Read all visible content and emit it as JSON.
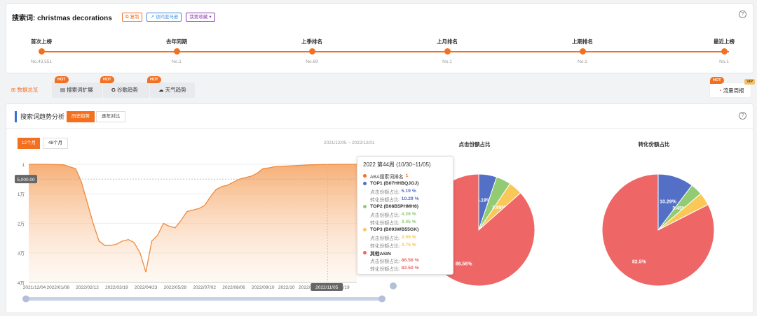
{
  "search": {
    "label": "搜索词: christmas decorations",
    "copy_label": "复制",
    "visit_label": "访问亚马逊",
    "fav_label": "我要收藏"
  },
  "timeline": [
    {
      "label": "首次上榜",
      "value": "No.43,551"
    },
    {
      "label": "去年同期",
      "value": "No.1"
    },
    {
      "label": "上季排名",
      "value": "No.69"
    },
    {
      "label": "上月排名",
      "value": "No.1"
    },
    {
      "label": "上期排名",
      "value": "No.1"
    },
    {
      "label": "最近上榜",
      "value": "No.1"
    }
  ],
  "tabs": {
    "overview": "数据总览",
    "expand": "搜索词扩展",
    "google": "谷歌趋势",
    "weather": "天气趋势",
    "traffic": "流量周报",
    "hot": "HOT",
    "vip": "VIP"
  },
  "section": {
    "title": "搜索词趋势分析",
    "btn_history": "历史趋势",
    "btn_compare": "逐年对比",
    "btn_12m": "12个月",
    "btn_48m": "48个月",
    "date_range": "2021/12/05 ~ 2022/12/01",
    "pie_click_title": "点击份额占比",
    "pie_conv_title": "转化份额占比"
  },
  "tooltip": {
    "header": "2022 第44周 (10/30~11/05)",
    "rank_label": "ABA搜索词排名",
    "rank_value": "1",
    "items": [
      {
        "name": "TOP1 (B07HHBQJGJ)",
        "click_label": "点击份额占比:",
        "click": "5.19 %",
        "conv_label": "转化份额占比:",
        "conv": "10.29 %",
        "color": "#5470c6"
      },
      {
        "name": "TOP2 (B08B5PHMH6)",
        "click_label": "点击份额占比:",
        "click": "4.26 %",
        "conv_label": "转化份额占比:",
        "conv": "3.45 %",
        "color": "#91cc75"
      },
      {
        "name": "TOP3 (B093WB55GK)",
        "click_label": "点击份额占比:",
        "click": "3.99 %",
        "conv_label": "转化份额占比:",
        "conv": "3.75 %",
        "color": "#fac858"
      },
      {
        "name": "其他ASIN",
        "click_label": "点击份额占比:",
        "click": "86.56 %",
        "conv_label": "转化份额占比:",
        "conv": "82.50 %",
        "color": "#ee6666"
      }
    ]
  },
  "colors": {
    "accent": "#f37021",
    "blue": "#5470c6",
    "green": "#91cc75",
    "yellow": "#fac858",
    "red": "#ee6666"
  },
  "chart_data": [
    {
      "type": "area",
      "yaxis_ticks": [
        "1",
        "1万",
        "2万",
        "3万",
        "4万"
      ],
      "ylim": [
        1,
        40000
      ],
      "y_inverted": true,
      "x_ticks": [
        "2021/12/04",
        "2022/01/08",
        "2022/02/12",
        "2022/03/19",
        "2022/04/23",
        "2022/05/28",
        "2022/07/02",
        "2022/08/06",
        "2022/09/10",
        "2022/10",
        "2022/11/05",
        "1/19"
      ],
      "hover_value": "5,000.00",
      "points": [
        [
          0,
          1
        ],
        [
          3,
          1
        ],
        [
          6,
          200
        ],
        [
          8,
          1500
        ],
        [
          9,
          6000
        ],
        [
          10,
          13000
        ],
        [
          11,
          20000
        ],
        [
          12,
          26000
        ],
        [
          13,
          27500
        ],
        [
          14,
          27500
        ],
        [
          15,
          27000
        ],
        [
          16,
          26000
        ],
        [
          17,
          25500
        ],
        [
          18,
          26500
        ],
        [
          19,
          30000
        ],
        [
          20,
          36500
        ],
        [
          21,
          26000
        ],
        [
          22,
          24000
        ],
        [
          23,
          20000
        ],
        [
          24,
          21000
        ],
        [
          25,
          21500
        ],
        [
          26,
          19000
        ],
        [
          27,
          16000
        ],
        [
          28,
          15500
        ],
        [
          29,
          15000
        ],
        [
          30,
          14000
        ],
        [
          31,
          11000
        ],
        [
          32,
          8500
        ],
        [
          33,
          7500
        ],
        [
          34,
          7000
        ],
        [
          35,
          6000
        ],
        [
          36,
          5000
        ],
        [
          37,
          4500
        ],
        [
          38,
          4000
        ],
        [
          39,
          3000
        ],
        [
          40,
          1500
        ],
        [
          41,
          1200
        ],
        [
          42,
          800
        ],
        [
          44,
          600
        ],
        [
          46,
          400
        ],
        [
          48,
          200
        ],
        [
          50,
          100
        ],
        [
          52,
          50
        ],
        [
          54,
          10
        ],
        [
          56,
          1
        ]
      ],
      "grid": true
    },
    {
      "type": "pie",
      "title": "点击份额占比",
      "labels": [
        "TOP1 (B07HHBQJGJ)",
        "TOP2 (B08B5PHMH6)",
        "TOP3 (B093WB55GK)",
        "其他ASIN"
      ],
      "values": [
        5.19,
        4.26,
        3.99,
        86.56
      ],
      "shown_labels": [
        "5.19%",
        "",
        "3.99%",
        "86.56%"
      ]
    },
    {
      "type": "pie",
      "title": "转化份额占比",
      "labels": [
        "TOP1 (B07HHBQJGJ)",
        "TOP2 (B08B5PHMH6)",
        "TOP3 (B093WB55GK)",
        "其他ASIN"
      ],
      "values": [
        10.29,
        3.45,
        3.75,
        82.5
      ],
      "shown_labels": [
        "10.29%",
        "3.45%",
        "",
        "82.5%"
      ]
    }
  ]
}
